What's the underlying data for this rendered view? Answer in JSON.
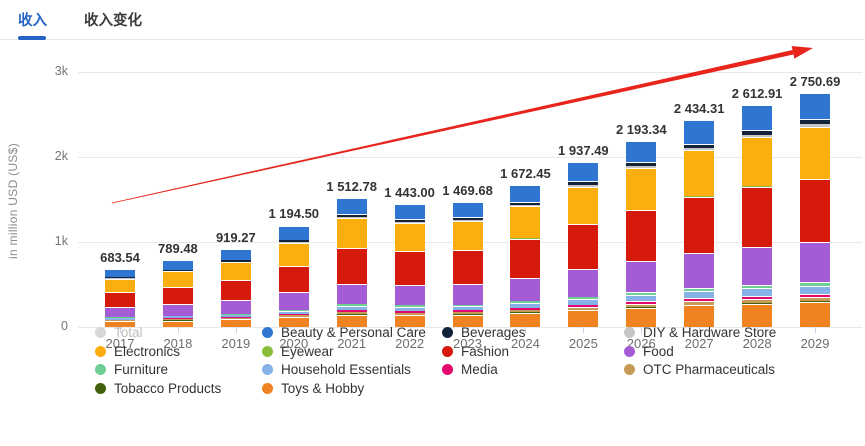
{
  "tabs": [
    {
      "label": "收入",
      "active": true
    },
    {
      "label": "收入变化",
      "active": false
    }
  ],
  "chart_data": {
    "type": "bar",
    "variant": "stacked",
    "ylabel": "in million USD (US$)",
    "ylim": [
      0,
      3000
    ],
    "yticks": [
      {
        "value": 0,
        "label": "0"
      },
      {
        "value": 1000,
        "label": "1k"
      },
      {
        "value": 2000,
        "label": "2k"
      },
      {
        "value": 3000,
        "label": "3k"
      }
    ],
    "grid": true,
    "categories": [
      "2017",
      "2018",
      "2019",
      "2020",
      "2021",
      "2022",
      "2023",
      "2024",
      "2025",
      "2026",
      "2027",
      "2028",
      "2029"
    ],
    "total_labels": [
      "683.54",
      "789.48",
      "919.27",
      "1 194.50",
      "1 512.78",
      "1 443.00",
      "1 469.68",
      "1 672.45",
      "1 937.49",
      "2 193.34",
      "2 434.31",
      "2 612.91",
      "2 750.69"
    ],
    "totals": [
      683.54,
      789.48,
      919.27,
      1194.5,
      1512.78,
      1443.0,
      1469.68,
      1672.45,
      1937.49,
      2193.34,
      2434.31,
      2612.91,
      2750.69
    ],
    "stack_order_top_to_bottom": [
      "Beauty & Personal Care",
      "Beverages",
      "DIY & Hardware Store",
      "Electronics",
      "Eyewear",
      "Fashion",
      "Food",
      "Furniture",
      "Household Essentials",
      "Media",
      "OTC Pharmaceuticals",
      "Tobacco Products",
      "Toys & Hobby"
    ],
    "series": [
      {
        "name": "Beauty & Personal Care",
        "color": "#2F76D2",
        "values": [
          98,
          113,
          131,
          168,
          180,
          172,
          175,
          196,
          224,
          251,
          276,
          294,
          307
        ]
      },
      {
        "name": "Beverages",
        "color": "#13243A",
        "values": [
          13,
          15,
          17,
          22,
          35,
          33,
          34,
          38,
          43,
          48,
          53,
          57,
          60
        ]
      },
      {
        "name": "DIY & Hardware Store",
        "color": "#C6C6C6",
        "values": [
          6,
          7,
          8,
          11,
          15,
          14,
          14,
          16,
          18,
          20,
          22,
          24,
          25
        ]
      },
      {
        "name": "Electronics",
        "color": "#FBAE0E",
        "values": [
          156,
          180,
          210,
          273,
          350,
          330,
          335,
          380,
          438,
          494,
          546,
          584,
          612
        ]
      },
      {
        "name": "Eyewear",
        "color": "#8BBD3B",
        "values": [
          2,
          2.3,
          2.7,
          3.5,
          4.5,
          4.3,
          4.4,
          5,
          5.8,
          6.5,
          7.2,
          7.7,
          8.1
        ]
      },
      {
        "name": "Fashion",
        "color": "#D5190B",
        "values": [
          176,
          203,
          237,
          308,
          420,
          400,
          405,
          455,
          525,
          592,
          655,
          700,
          733
        ]
      },
      {
        "name": "Food",
        "color": "#A45CD5",
        "values": [
          116,
          134,
          156,
          203,
          240,
          232,
          238,
          275,
          325,
          372,
          417,
          452,
          480
        ]
      },
      {
        "name": "Furniture",
        "color": "#6FCE93",
        "values": [
          9,
          10,
          12,
          16,
          20,
          19,
          20,
          23,
          27,
          31,
          34,
          37,
          39
        ]
      },
      {
        "name": "Household Essentials",
        "color": "#86B2E8",
        "values": [
          20,
          23,
          27,
          36,
          50,
          48,
          49,
          57,
          67,
          77,
          86,
          93,
          98
        ]
      },
      {
        "name": "Media",
        "color": "#E4086E",
        "values": [
          9,
          10,
          12,
          16,
          22,
          21,
          21,
          24,
          28,
          32,
          36,
          39,
          41
        ]
      },
      {
        "name": "OTC Pharmaceuticals",
        "color": "#C79A58",
        "values": [
          11,
          13,
          15,
          19,
          25,
          24,
          25,
          28,
          32,
          36,
          40,
          43,
          45
        ]
      },
      {
        "name": "Tobacco Products",
        "color": "#41610D",
        "values": [
          2.54,
          3,
          3.2,
          4,
          5,
          5,
          5,
          5.5,
          6.4,
          7.2,
          8,
          8.6,
          9
        ]
      },
      {
        "name": "Toys & Hobby",
        "color": "#F08321",
        "values": [
          65,
          76.18,
          88.37,
          115,
          146.28,
          140.7,
          144.28,
          169.95,
          198.29,
          226.64,
          254.11,
          273.61,
          293.59
        ]
      }
    ],
    "annotation_arrow": {
      "color": "#E8251C",
      "from": [
        112,
        163
      ],
      "to": [
        813,
        8
      ]
    },
    "legend_position": "bottom",
    "legend_columns": [
      [
        "Total",
        "Electronics",
        "Furniture",
        "Tobacco Products"
      ],
      [
        "Beauty & Personal Care",
        "Eyewear",
        "Household Essentials",
        "Toys & Hobby"
      ],
      [
        "Beverages",
        "Fashion",
        "Media"
      ],
      [
        "DIY & Hardware Store",
        "Food",
        "OTC Pharmaceuticals"
      ]
    ],
    "legend_extra_colors": {
      "Total": "#D8D8D8"
    },
    "legend_inactive": [
      "Total"
    ]
  }
}
